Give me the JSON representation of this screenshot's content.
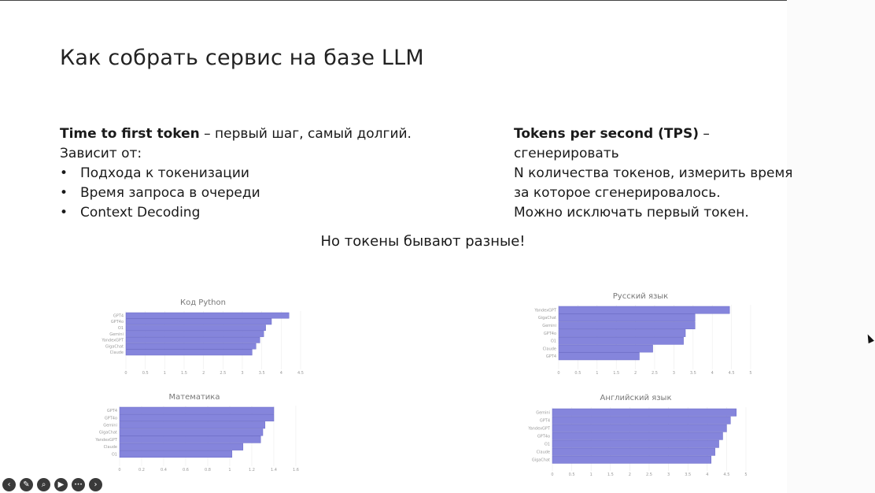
{
  "slide": {
    "title": "Как собрать сервис на базе LLM",
    "left": {
      "term": "Time to first token",
      "rest": " – первый шаг, самый долгий.",
      "depends": "Зависит от:",
      "bullets": [
        "Подхода к токенизации",
        "Время запроса в очереди",
        "Context Decoding"
      ]
    },
    "right": {
      "term": "Tokens per second (TPS)",
      "rest": " – сгенерировать",
      "line2": "N количества токенов, измерить время",
      "line3": "за которое сгенерировалось.",
      "line4": "Можно исключать первый токен."
    },
    "note": "Но токены бывают разные!"
  },
  "colors": {
    "bar": "#8585dc",
    "bar_border": "#6a6ac8"
  },
  "toolbar": {
    "icons": [
      "arrow-left-icon",
      "pen-icon",
      "zoom-icon",
      "video-icon",
      "more-icon",
      "arrow-right-icon"
    ],
    "glyphs": [
      "‹",
      "✎",
      "⌕",
      "▶",
      "•••",
      "›"
    ]
  },
  "chart_data": [
    {
      "type": "bar",
      "orientation": "horizontal",
      "title": "Код Python",
      "categories": [
        "GPT4",
        "GPT4o",
        "O1",
        "Gemini",
        "YandexGPT",
        "GigaChat",
        "Claude"
      ],
      "values": [
        4.2,
        3.75,
        3.6,
        3.55,
        3.45,
        3.35,
        3.25
      ],
      "xticks": [
        "0",
        "0.5",
        "1",
        "1.5",
        "2",
        "2.5",
        "3",
        "3.5",
        "4",
        "4.5"
      ],
      "xlim": [
        0,
        4.5
      ]
    },
    {
      "type": "bar",
      "orientation": "horizontal",
      "title": "Русский язык",
      "categories": [
        "YandexGPT",
        "GigaChat",
        "Gemini",
        "GPT4o",
        "O1",
        "Claude",
        "GPT4"
      ],
      "values": [
        4.45,
        3.55,
        3.55,
        3.3,
        3.25,
        2.45,
        2.1
      ],
      "xticks": [
        "0",
        "0.5",
        "1",
        "1.5",
        "2",
        "2.5",
        "3",
        "3.5",
        "4",
        "4.5",
        "5"
      ],
      "xlim": [
        0,
        5
      ]
    },
    {
      "type": "bar",
      "orientation": "horizontal",
      "title": "Математика",
      "categories": [
        "GPT4",
        "GPT4o",
        "Gemini",
        "GigaChat",
        "YandexGPT",
        "Claude",
        "O1"
      ],
      "values": [
        1.4,
        1.4,
        1.32,
        1.3,
        1.28,
        1.12,
        1.02
      ],
      "xticks": [
        "0",
        "0.2",
        "0.4",
        "0.6",
        "0.8",
        "1",
        "1.2",
        "1.4",
        "1.6"
      ],
      "xlim": [
        0,
        1.6
      ]
    },
    {
      "type": "bar",
      "orientation": "horizontal",
      "title": "Английский язык",
      "categories": [
        "Gemini",
        "GPT4",
        "YandexGPT",
        "GPT4o",
        "O1",
        "Claude",
        "GigaChat"
      ],
      "values": [
        4.75,
        4.6,
        4.5,
        4.4,
        4.3,
        4.2,
        4.1
      ],
      "xticks": [
        "0",
        "0.5",
        "1",
        "1.5",
        "2",
        "2.5",
        "3",
        "3.5",
        "4",
        "4.5",
        "5"
      ],
      "xlim": [
        0,
        5
      ]
    }
  ]
}
